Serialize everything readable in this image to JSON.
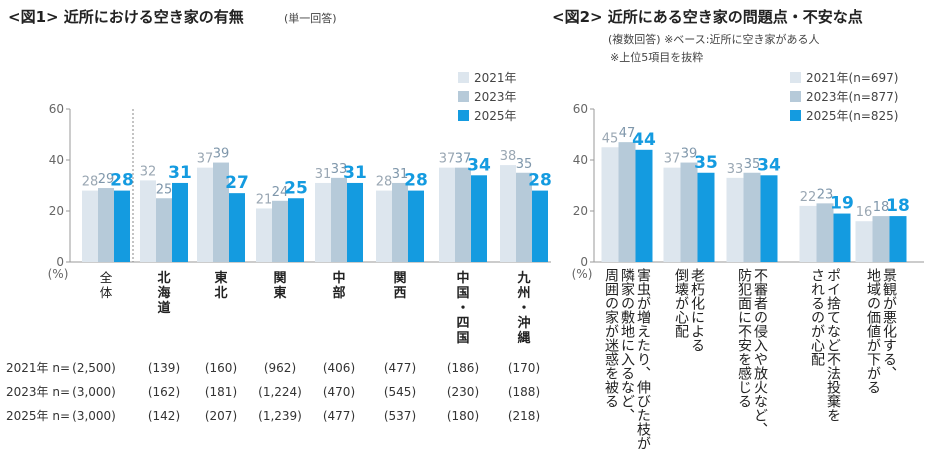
{
  "colors": {
    "y2021": "#dde6ee",
    "y2023": "#b6cad9",
    "y2025": "#149be0",
    "lab2021": "#9aa7b3",
    "lab2023": "#7f97ab",
    "lab2025": "#149be0",
    "axis": "#9a9a9a"
  },
  "chart_data": [
    {
      "type": "bar",
      "title": "<図1> 近所における空き家の有無",
      "subtitle": "(単一回答)",
      "ylabel": "(%)",
      "ylim": [
        0,
        60
      ],
      "yticks": [
        "0",
        "20",
        "40",
        "60"
      ],
      "grid": false,
      "legend_position": "top-right",
      "categories": [
        "全体",
        "北海道",
        "東北",
        "関東",
        "中部",
        "関西",
        "中国・四国",
        "九州・沖縄"
      ],
      "category_lines": [
        [
          "全",
          "体"
        ],
        [
          "北",
          "海",
          "道"
        ],
        [
          "東",
          "北"
        ],
        [
          "関",
          "東"
        ],
        [
          "中",
          "部"
        ],
        [
          "関",
          "西"
        ],
        [
          "中",
          "国",
          "・",
          "四",
          "国"
        ],
        [
          "九",
          "州",
          "・",
          "沖",
          "縄"
        ]
      ],
      "series": [
        {
          "name": "2021年",
          "values": [
            28,
            32,
            37,
            21,
            31,
            28,
            37,
            38
          ]
        },
        {
          "name": "2023年",
          "values": [
            29,
            25,
            39,
            24,
            33,
            31,
            37,
            35
          ]
        },
        {
          "name": "2025年",
          "values": [
            28,
            31,
            27,
            25,
            31,
            28,
            34,
            28
          ]
        }
      ],
      "sample_sizes": [
        {
          "label": "2021年 n=",
          "values": [
            "(2,500)",
            "(139)",
            "(160)",
            "(962)",
            "(406)",
            "(477)",
            "(186)",
            "(170)"
          ]
        },
        {
          "label": "2023年 n=",
          "values": [
            "(3,000)",
            "(162)",
            "(181)",
            "(1,224)",
            "(470)",
            "(545)",
            "(230)",
            "(188)"
          ]
        },
        {
          "label": "2025年 n=",
          "values": [
            "(3,000)",
            "(142)",
            "(207)",
            "(1,239)",
            "(477)",
            "(537)",
            "(180)",
            "(218)"
          ]
        }
      ]
    },
    {
      "type": "bar",
      "title": "<図2> 近所にある空き家の問題点・不安な点",
      "subtitle": "(複数回答) ※ベース:近所に空き家がある人",
      "note": "※上位5項目を抜粋",
      "ylabel": "(%)",
      "ylim": [
        0,
        60
      ],
      "yticks": [
        "0",
        "20",
        "40",
        "60"
      ],
      "grid": false,
      "legend_position": "top-right",
      "categories": [
        "害虫が増えたり、伸びた枝が隣家の敷地に入るなど、周囲の家が迷惑を被る",
        "老朽化による倒壊が心配",
        "不審者の侵入や放火など、防犯面に不安を感じる",
        "ポイ捨てなど不法投棄をされるのが心配",
        "景観が悪化する、地域の価値が下がる"
      ],
      "category_lines": [
        [
          "周囲の家が迷惑を被る",
          "隣家の敷地に入るなど、",
          "害虫が増えたり、伸びた枝が"
        ],
        [
          "倒壊が心配",
          "老朽化による"
        ],
        [
          "防犯面に不安を感じる",
          "不審者の侵入や放火など、"
        ],
        [
          "されるのが心配",
          "ポイ捨てなど不法投棄を"
        ],
        [
          "地域の価値が下がる",
          "景観が悪化する、"
        ]
      ],
      "series": [
        {
          "name": "2021年(n=697)",
          "values": [
            45,
            37,
            33,
            22,
            16
          ]
        },
        {
          "name": "2023年(n=877)",
          "values": [
            47,
            39,
            35,
            23,
            18
          ]
        },
        {
          "name": "2025年(n=825)",
          "values": [
            44,
            35,
            34,
            19,
            18
          ]
        }
      ]
    }
  ]
}
